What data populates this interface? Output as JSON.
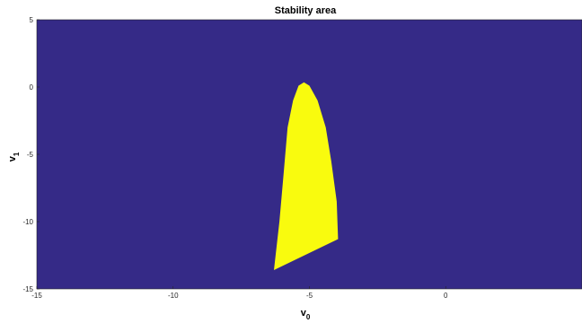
{
  "chart_data": {
    "type": "heatmap",
    "title": "Stability area",
    "xlabel": {
      "main": "v",
      "sub": "0"
    },
    "ylabel": {
      "main": "v",
      "sub": "1"
    },
    "xlim": [
      -15,
      5
    ],
    "ylim": [
      -15,
      5
    ],
    "x_ticks": [
      -15,
      -10,
      -5,
      0
    ],
    "y_ticks": [
      5,
      0,
      -5,
      -10,
      -15
    ],
    "grid": false,
    "legend": "none",
    "colors": {
      "background": "#352A87",
      "stable": "#F9FB0E"
    },
    "stable_region_boundary": [
      [
        -6.3,
        -13.6
      ],
      [
        -6.1,
        -10.0
      ],
      [
        -5.95,
        -6.5
      ],
      [
        -5.8,
        -3.0
      ],
      [
        -5.6,
        -1.0
      ],
      [
        -5.4,
        0.1
      ],
      [
        -5.2,
        0.35
      ],
      [
        -5.0,
        0.1
      ],
      [
        -4.7,
        -1.0
      ],
      [
        -4.4,
        -3.0
      ],
      [
        -4.2,
        -5.5
      ],
      [
        -4.0,
        -8.5
      ],
      [
        -3.95,
        -11.3
      ]
    ]
  }
}
